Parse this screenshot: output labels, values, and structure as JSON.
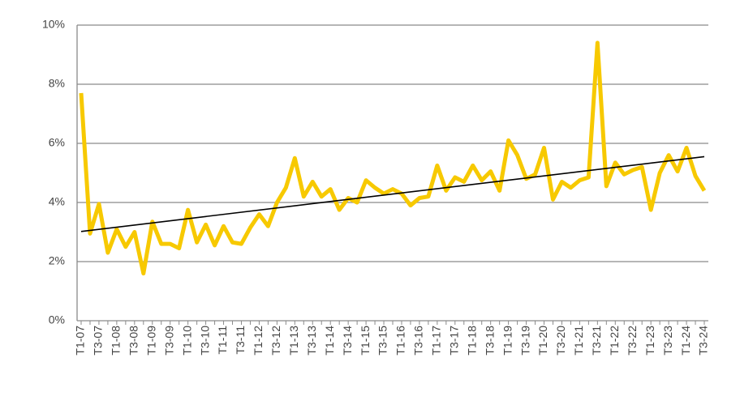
{
  "chart_data": {
    "type": "line",
    "categories": [
      "T1-07",
      null,
      "T3-07",
      null,
      "T1-08",
      null,
      "T3-08",
      null,
      "T1-09",
      null,
      "T3-09",
      null,
      "T1-10",
      null,
      "T3-10",
      null,
      "T1-11",
      null,
      "T3-11",
      null,
      "T1-12",
      null,
      "T3-12",
      null,
      "T1-13",
      null,
      "T3-13",
      null,
      "T1-14",
      null,
      "T3-14",
      null,
      "T1-15",
      null,
      "T3-15",
      null,
      "T1-16",
      null,
      "T3-16",
      null,
      "T1-17",
      null,
      "T3-17",
      null,
      "T1-18",
      null,
      "T3-18",
      null,
      "T1-19",
      null,
      "T3-19",
      null,
      "T1-20",
      null,
      "T3-20",
      null,
      "T1-21",
      null,
      "T3-21",
      null,
      "T1-22",
      null,
      "T3-22",
      null,
      "T1-23",
      null,
      "T3-23",
      null,
      "T1-24",
      null,
      "T3-24"
    ],
    "series": [
      {
        "color": "#f7c900",
        "values": [
          7.7,
          2.95,
          3.95,
          2.3,
          3.1,
          2.5,
          3.0,
          1.6,
          3.35,
          2.6,
          2.6,
          2.45,
          3.75,
          2.65,
          3.25,
          2.55,
          3.2,
          2.65,
          2.6,
          3.15,
          3.6,
          3.2,
          4.0,
          4.5,
          5.5,
          4.2,
          4.7,
          4.2,
          4.45,
          3.75,
          4.15,
          4.0,
          4.75,
          4.5,
          4.3,
          4.45,
          4.3,
          3.9,
          4.15,
          4.2,
          5.25,
          4.4,
          4.85,
          4.7,
          5.25,
          4.75,
          5.05,
          4.4,
          6.1,
          5.6,
          4.8,
          4.95,
          5.85,
          4.1,
          4.7,
          4.5,
          4.75,
          4.85,
          9.4,
          4.55,
          5.35,
          4.95,
          5.1,
          5.2,
          3.75,
          5.0,
          5.6,
          5.05,
          5.85,
          4.9,
          4.4
        ]
      }
    ],
    "trend": {
      "color": "#000000",
      "values": [
        3.02,
        5.55
      ]
    },
    "ylim": [
      0,
      10
    ],
    "yticks": [
      {
        "value": 0,
        "label": "0%"
      },
      {
        "value": 2,
        "label": "2%"
      },
      {
        "value": 4,
        "label": "4%"
      },
      {
        "value": 6,
        "label": "6%"
      },
      {
        "value": 8,
        "label": "8%"
      },
      {
        "value": 10,
        "label": "10%"
      }
    ],
    "grid": true
  }
}
